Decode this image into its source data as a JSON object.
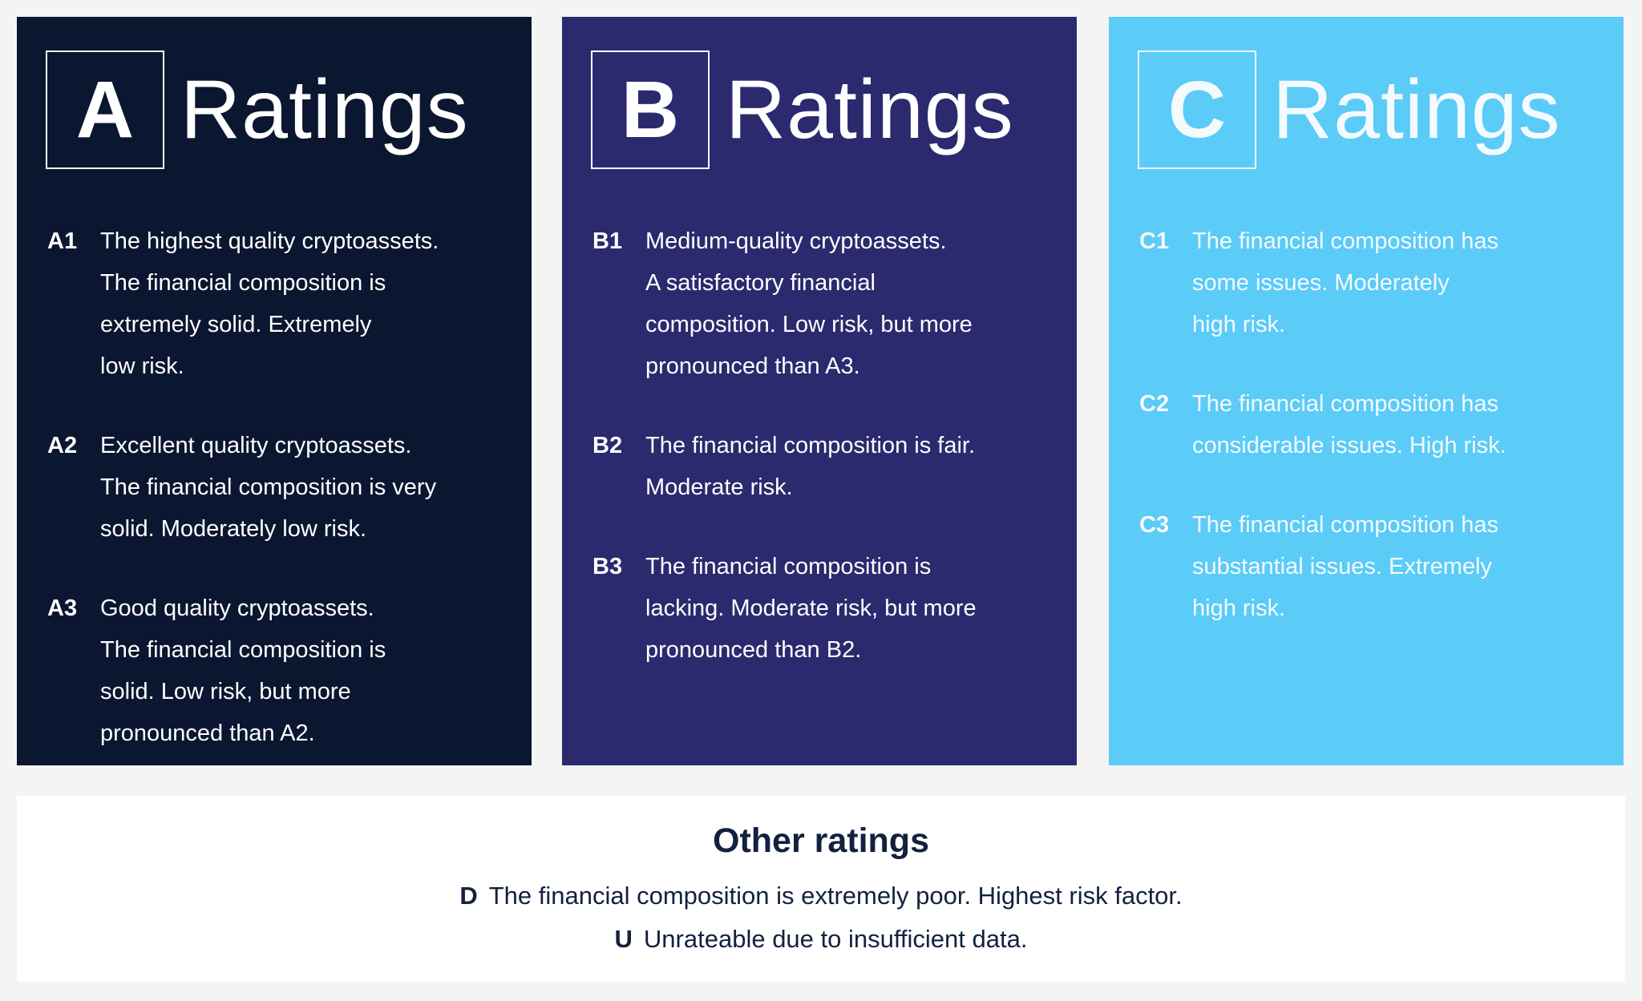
{
  "panels": [
    {
      "letter": "A",
      "heading": "Ratings",
      "items": [
        {
          "code": "A1",
          "lines": [
            "The highest quality cryptoassets.",
            "The financial composition is",
            "extremely solid. Extremely",
            "low risk."
          ]
        },
        {
          "code": "A2",
          "lines": [
            "Excellent quality cryptoassets.",
            "The financial composition is very",
            "solid. Moderately low risk."
          ]
        },
        {
          "code": "A3",
          "lines": [
            "Good quality cryptoassets.",
            "The financial composition is",
            "solid. Low risk, but more",
            "pronounced than A2."
          ]
        }
      ]
    },
    {
      "letter": "B",
      "heading": "Ratings",
      "items": [
        {
          "code": "B1",
          "lines": [
            "Medium-quality cryptoassets.",
            "A satisfactory financial",
            "composition. Low risk, but more",
            "pronounced than A3."
          ]
        },
        {
          "code": "B2",
          "lines": [
            "The financial composition is fair.",
            "Moderate risk."
          ]
        },
        {
          "code": "B3",
          "lines": [
            "The financial composition is",
            "lacking. Moderate risk, but more",
            "pronounced than B2."
          ]
        }
      ]
    },
    {
      "letter": "C",
      "heading": "Ratings",
      "items": [
        {
          "code": "C1",
          "lines": [
            "The financial composition has",
            "some issues. Moderately",
            "high risk."
          ]
        },
        {
          "code": "C2",
          "lines": [
            "The financial composition has",
            "considerable issues. High risk."
          ]
        },
        {
          "code": "C3",
          "lines": [
            "The financial composition has",
            "substantial issues. Extremely",
            "high risk."
          ]
        }
      ]
    }
  ],
  "other": {
    "title": "Other ratings",
    "items": [
      {
        "code": "D",
        "text": "The financial composition is extremely poor. Highest risk factor."
      },
      {
        "code": "U",
        "text": "Unrateable due to insufficient data."
      }
    ]
  }
}
